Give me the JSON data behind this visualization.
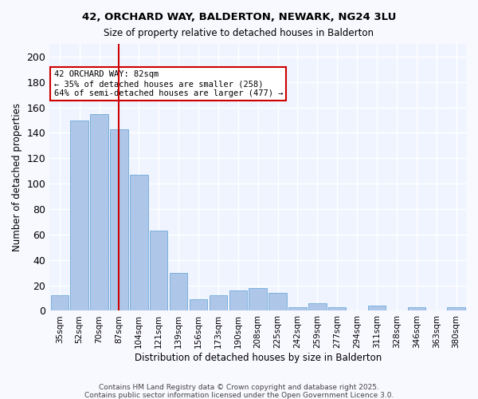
{
  "title1": "42, ORCHARD WAY, BALDERTON, NEWARK, NG24 3LU",
  "title2": "Size of property relative to detached houses in Balderton",
  "xlabel": "Distribution of detached houses by size in Balderton",
  "ylabel": "Number of detached properties",
  "categories": [
    "35sqm",
    "52sqm",
    "70sqm",
    "87sqm",
    "104sqm",
    "121sqm",
    "139sqm",
    "156sqm",
    "173sqm",
    "190sqm",
    "208sqm",
    "225sqm",
    "242sqm",
    "259sqm",
    "277sqm",
    "294sqm",
    "311sqm",
    "328sqm",
    "346sqm",
    "363sqm",
    "380sqm"
  ],
  "values": [
    12,
    150,
    155,
    143,
    107,
    63,
    30,
    9,
    12,
    16,
    18,
    14,
    3,
    6,
    3,
    0,
    4,
    0,
    3,
    0,
    3
  ],
  "bar_color": "#aec6e8",
  "bar_edge_color": "#5a9fd4",
  "vline_x_index": 3,
  "vline_color": "#cc0000",
  "annotation_text": "42 ORCHARD WAY: 82sqm\n← 35% of detached houses are smaller (258)\n64% of semi-detached houses are larger (477) →",
  "annotation_box_color": "#cc0000",
  "annotation_text_color": "#000000",
  "ylim": [
    0,
    210
  ],
  "yticks": [
    0,
    20,
    40,
    60,
    80,
    100,
    120,
    140,
    160,
    180,
    200
  ],
  "bg_color": "#f0f4ff",
  "grid_color": "#ffffff",
  "footer_line1": "Contains HM Land Registry data © Crown copyright and database right 2025.",
  "footer_line2": "Contains public sector information licensed under the Open Government Licence 3.0."
}
